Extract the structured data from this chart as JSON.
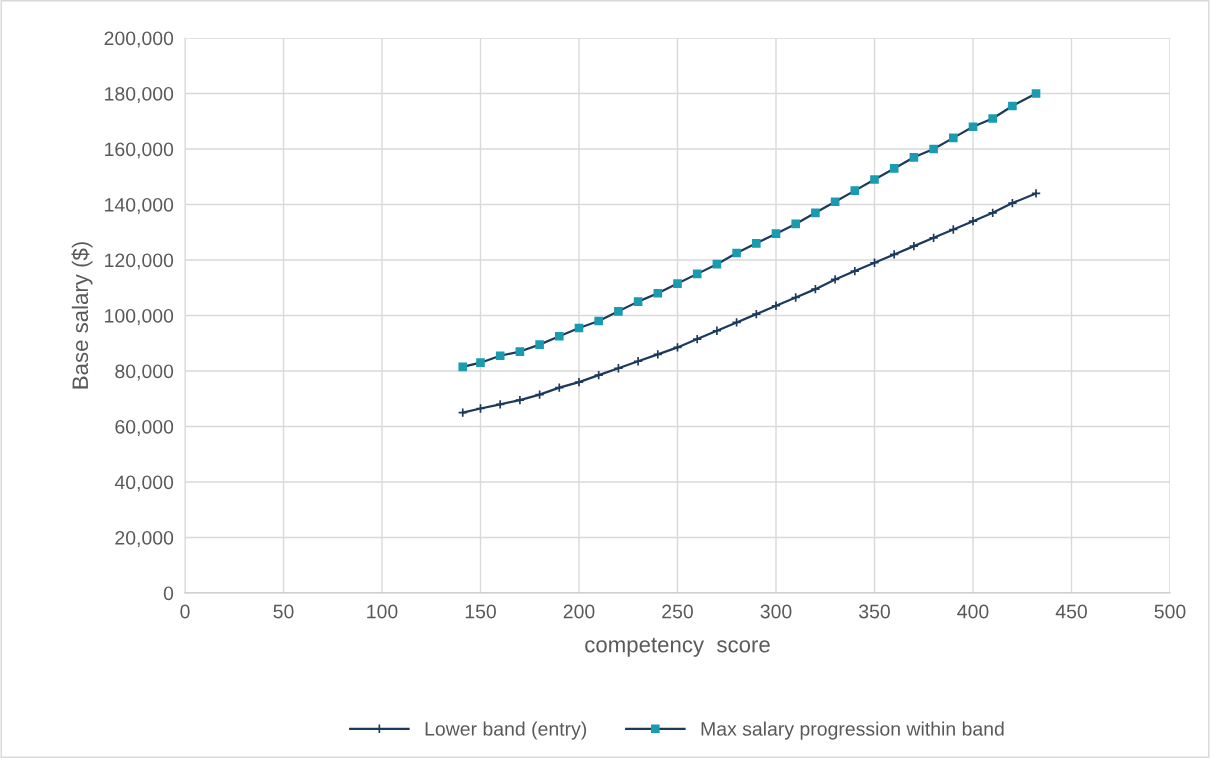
{
  "chart_data": {
    "type": "line",
    "xlabel": "competency  score",
    "ylabel": "Base salary ($)",
    "xlim": [
      0,
      500
    ],
    "xticks": [
      0,
      50,
      100,
      150,
      200,
      250,
      300,
      350,
      400,
      450,
      500
    ],
    "ylim": [
      0,
      200000
    ],
    "yticks": [
      {
        "value": 0,
        "label": "0"
      },
      {
        "value": 20000,
        "label": "20,000"
      },
      {
        "value": 40000,
        "label": "40,000"
      },
      {
        "value": 60000,
        "label": "60,000"
      },
      {
        "value": 80000,
        "label": "80,000"
      },
      {
        "value": 100000,
        "label": "100,000"
      },
      {
        "value": 120000,
        "label": "120,000"
      },
      {
        "value": 140000,
        "label": "140,000"
      },
      {
        "value": 160000,
        "label": "160,000"
      },
      {
        "value": 180000,
        "label": "180,000"
      },
      {
        "value": 200000,
        "label": "200,000"
      }
    ],
    "grid": true,
    "legend": "bottom",
    "line_style": "solid",
    "series": [
      {
        "name": "Lower band (entry)",
        "color": "#1b3a5c",
        "marker": "cross",
        "x": [
          141,
          150,
          160,
          170,
          180,
          190,
          200,
          210,
          220,
          230,
          240,
          250,
          260,
          270,
          280,
          290,
          300,
          310,
          320,
          330,
          340,
          350,
          360,
          370,
          380,
          390,
          400,
          410,
          420,
          432
        ],
        "values": [
          65000,
          66500,
          68000,
          69500,
          71500,
          74000,
          76000,
          78500,
          81000,
          83500,
          86000,
          88500,
          91500,
          94500,
          97500,
          100500,
          103500,
          106500,
          109500,
          113000,
          116000,
          119000,
          122000,
          125000,
          128000,
          131000,
          134000,
          137000,
          140500,
          144000
        ]
      },
      {
        "name": "Max salary progression within band",
        "color": "#1a9bb0",
        "marker": "square",
        "x": [
          141,
          150,
          160,
          170,
          180,
          190,
          200,
          210,
          220,
          230,
          240,
          250,
          260,
          270,
          280,
          290,
          300,
          310,
          320,
          330,
          340,
          350,
          360,
          370,
          380,
          390,
          400,
          410,
          420,
          432
        ],
        "values": [
          81500,
          83000,
          85500,
          87000,
          89500,
          92500,
          95500,
          98000,
          101500,
          105000,
          108000,
          111500,
          115000,
          118500,
          122500,
          126000,
          129500,
          133000,
          137000,
          141000,
          145000,
          149000,
          153000,
          157000,
          160000,
          164000,
          168000,
          171000,
          175500,
          180000
        ]
      }
    ]
  }
}
